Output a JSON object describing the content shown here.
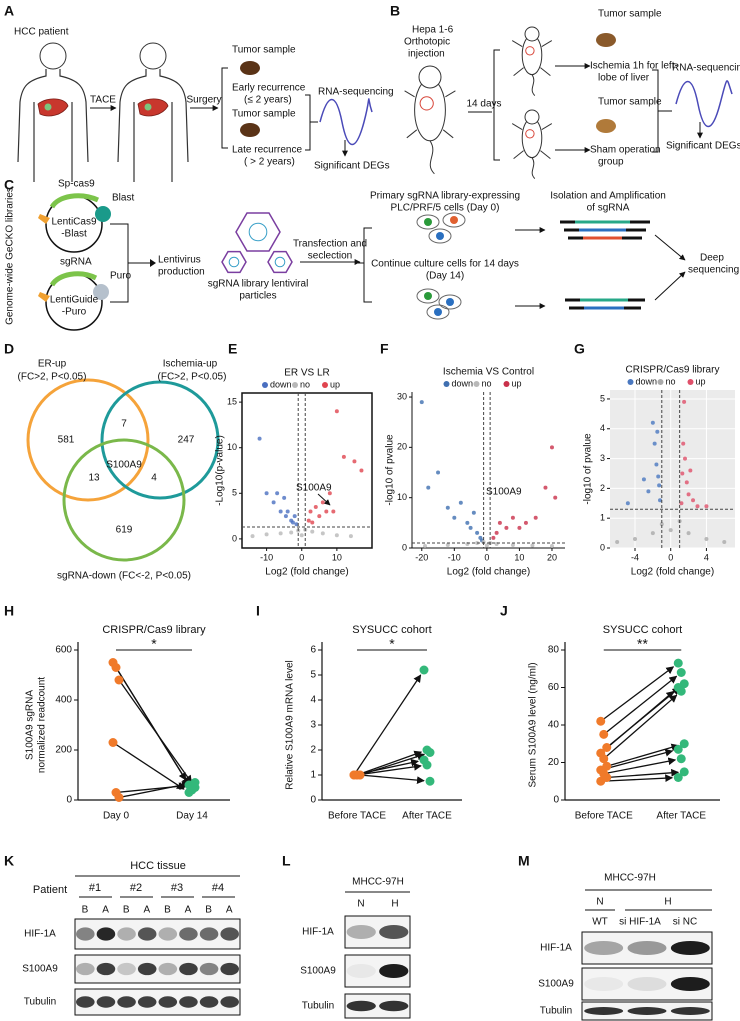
{
  "panels": {
    "A": {
      "letter": "A",
      "patient": "HCC patient",
      "tace": "TACE",
      "surgery": "Surgery",
      "tumor_early": "Tumor sample",
      "early": "Early recurrence",
      "early_range": "(≤ 2 years)",
      "tumor_late": "Tumor sample",
      "late": "Late recurrence",
      "late_range": "( > 2 years)",
      "rnaseq": "RNA-sequencing",
      "degs": "Significant DEGs"
    },
    "B": {
      "letter": "B",
      "cells": [
        "Hepa 1-6",
        "Orthotopic",
        "injection"
      ],
      "days": "14 days",
      "tumor_ischemia": "Tumor sample",
      "ischemia": [
        "Ischemia 1h for left-",
        "lobe of liver"
      ],
      "tumor_sham": "Tumor sample",
      "sham": [
        "Sham operation",
        "group"
      ],
      "rnaseq": "RNA-sequencing",
      "degs": "Significant DEGs"
    },
    "C": {
      "letter": "C",
      "side": "Genome-wide GeCKO libraries",
      "cas9": "Sp-cas9",
      "blast": "Blast",
      "plasmid1": [
        "LentiCas9",
        "-Blast"
      ],
      "sgrna": "sgRNA",
      "puro": "Puro",
      "plasmid2": [
        "LentiGuide",
        "-Puro"
      ],
      "lentivirus": [
        "Lentivirus",
        "production"
      ],
      "particles": [
        "sgRNA library lentiviral",
        "particles"
      ],
      "transfection": [
        "Transfection and",
        "seclection"
      ],
      "day0": [
        "Primary sgRNA library-expressing",
        "PLC/PRF/5 cells (Day 0)"
      ],
      "day14": [
        "Continue culture cells for 14 days",
        "(Day 14)"
      ],
      "isolation": [
        "Isolation and Amplification",
        "of sgRNA"
      ],
      "deep": [
        "Deep",
        "sequencing"
      ]
    },
    "D": {
      "letter": "D",
      "sets": [
        {
          "name": "ER-up",
          "criteria": "(FC>2, P<0.05)"
        },
        {
          "name": "Ischemia-up",
          "criteria": "(FC>2, P<0.05)"
        },
        {
          "name": "sgRNA-down (FC<-2, P<0.05)"
        }
      ],
      "regions": {
        "er_only": "581",
        "er_isch": "7",
        "isch_only": "247",
        "all": "S100A9",
        "er_sg": "13",
        "isch_sg": "4",
        "sg_only": "619"
      }
    },
    "E": {
      "letter": "E"
    },
    "F": {
      "letter": "F"
    },
    "G": {
      "letter": "G"
    },
    "H": {
      "letter": "H"
    },
    "I": {
      "letter": "I"
    },
    "J": {
      "letter": "J"
    },
    "K": {
      "letter": "K",
      "title": "HCC tissue",
      "patient": "Patient",
      "patients": [
        "#1",
        "#2",
        "#3",
        "#4"
      ],
      "lanes": [
        "B",
        "A",
        "B",
        "A",
        "B",
        "A",
        "B",
        "A"
      ],
      "rows": [
        "HIF-1A",
        "S100A9",
        "Tubulin"
      ]
    },
    "L": {
      "letter": "L",
      "cell": "MHCC-97H",
      "lanes": [
        "N",
        "H"
      ],
      "rows": [
        "HIF-1A",
        "S100A9",
        "Tubulin"
      ]
    },
    "M": {
      "letter": "M",
      "cell": "MHCC-97H",
      "groups": [
        "N",
        "H"
      ],
      "lanes": [
        "WT",
        "si HIF-1A",
        "si NC"
      ],
      "rows": [
        "HIF-1A",
        "S100A9",
        "Tubulin"
      ]
    }
  },
  "chart_data": [
    {
      "type": "scatter",
      "title": "ER VS LR",
      "xlabel": "Log2 (fold change)",
      "ylabel": "-Log10(p-value)",
      "xlim": [
        -17,
        20
      ],
      "ylim": [
        -1,
        16
      ],
      "xticks": [
        -10,
        0,
        10
      ],
      "yticks": [
        0,
        5,
        10,
        15
      ],
      "frame": true,
      "vlines": [
        -1,
        1
      ],
      "hline": 1.3,
      "annotation": "S100A9",
      "series": [
        {
          "name": "down",
          "color": "#4a6fc0",
          "x": [
            -12,
            -10,
            -8,
            -7,
            -6,
            -5,
            -4.5,
            -4,
            -3,
            -2.5,
            -2,
            -1.5
          ],
          "y": [
            11,
            5,
            4,
            5,
            3,
            4.5,
            2.5,
            3,
            2,
            1.8,
            2.5,
            1.6
          ]
        },
        {
          "name": "no",
          "color": "#b8b8b8",
          "x": [
            -14,
            -10,
            -6,
            -3,
            -1,
            0,
            1,
            3,
            6,
            10,
            14
          ],
          "y": [
            0.3,
            0.5,
            0.6,
            0.7,
            0.9,
            0.4,
            1,
            0.8,
            0.6,
            0.4,
            0.3
          ]
        },
        {
          "name": "up",
          "color": "#e0454f",
          "x": [
            2,
            2.5,
            3,
            4,
            5,
            6,
            7,
            8,
            9,
            10,
            12,
            15,
            17
          ],
          "y": [
            2,
            3,
            1.8,
            3.5,
            2.5,
            4,
            3,
            5,
            3,
            14,
            9,
            8.5,
            7.5
          ]
        }
      ]
    },
    {
      "type": "scatter",
      "title": "Ischemia VS Control",
      "xlabel": "Log2 (fold change)",
      "ylabel": "-log10 of pvalue",
      "xlim": [
        -23,
        24
      ],
      "ylim": [
        0,
        31
      ],
      "xticks": [
        -20,
        -10,
        0,
        10,
        20
      ],
      "yticks": [
        0,
        10,
        20,
        30
      ],
      "vlines": [
        -1,
        1
      ],
      "hline": 1,
      "annotation": "S100A9",
      "series": [
        {
          "name": "down",
          "color": "#3f6fb0",
          "x": [
            -20,
            -18,
            -15,
            -12,
            -10,
            -8,
            -6,
            -5,
            -4,
            -3,
            -2,
            -1.5
          ],
          "y": [
            29,
            12,
            15,
            8,
            6,
            9,
            5,
            4,
            7,
            3,
            2,
            1.5
          ]
        },
        {
          "name": "no",
          "color": "#b8b8b8",
          "x": [
            -19,
            -12,
            -6,
            -3,
            -1,
            0,
            1,
            3,
            8,
            14,
            20
          ],
          "y": [
            0.4,
            0.6,
            0.8,
            1,
            1.2,
            0.5,
            1,
            0.8,
            0.6,
            0.5,
            0.4
          ]
        },
        {
          "name": "up",
          "color": "#c9304a",
          "x": [
            2,
            3,
            4,
            6,
            8,
            10,
            12,
            15,
            18,
            20,
            21
          ],
          "y": [
            2,
            3,
            5,
            4,
            6,
            4,
            5,
            6,
            12,
            20,
            10
          ]
        }
      ]
    },
    {
      "type": "scatter",
      "title": "CRISPR/Cas9 library",
      "xlabel": "Log2 (fold change)",
      "ylabel": "-log10 of pvalue",
      "xlim": [
        -6.8,
        7.2
      ],
      "ylim": [
        0,
        5.3
      ],
      "xticks": [
        -4,
        0,
        4
      ],
      "yticks": [
        0,
        1,
        2,
        3,
        4,
        5
      ],
      "grid": true,
      "vlines": [
        -1,
        1
      ],
      "hline": 1.3,
      "series": [
        {
          "name": "down",
          "color": "#4a78c0",
          "x": [
            -4.8,
            -3,
            -2.5,
            -2,
            -1.8,
            -1.6,
            -1.5,
            -1.4,
            -1.3,
            -1.2
          ],
          "y": [
            1.5,
            2.3,
            1.9,
            4.2,
            3.5,
            2.8,
            3.9,
            2.4,
            2.1,
            1.6
          ]
        },
        {
          "name": "no",
          "color": "#aaaaaa",
          "x": [
            -6,
            -4,
            -2,
            -1,
            0,
            1,
            2,
            4,
            6
          ],
          "y": [
            0.2,
            0.3,
            0.5,
            0.8,
            0.6,
            0.9,
            0.5,
            0.3,
            0.2
          ]
        },
        {
          "name": "up",
          "color": "#e0506a",
          "x": [
            1.2,
            1.3,
            1.4,
            1.5,
            1.6,
            1.8,
            2,
            2.2,
            2.5,
            3,
            4
          ],
          "y": [
            1.5,
            2.5,
            3.5,
            4.9,
            3,
            2.2,
            1.8,
            2.6,
            1.6,
            1.4,
            1.4
          ]
        }
      ]
    },
    {
      "type": "paired",
      "title": "CRISPR/Cas9 library",
      "ylabel": [
        "S100A9 sgRNA",
        "normalized readcount"
      ],
      "categories": [
        "Day 0",
        "Day 14"
      ],
      "colors": [
        "#f07a2a",
        "#33b87a"
      ],
      "values": [
        [
          550,
          530,
          480,
          230,
          30,
          10
        ],
        [
          60,
          40,
          50,
          30,
          60,
          70
        ]
      ],
      "ylim": [
        0,
        600
      ],
      "yticks": [
        0,
        200,
        400,
        600
      ],
      "significance": "*"
    },
    {
      "type": "paired",
      "title": "SYSUCC cohort",
      "ylabel": [
        "Relative S100A9 mRNA level"
      ],
      "categories": [
        "Before TACE",
        "After TACE"
      ],
      "colors": [
        "#f07a2a",
        "#33b87a"
      ],
      "values": [
        [
          1,
          1,
          1,
          1,
          1,
          1
        ],
        [
          5.2,
          2,
          1.9,
          1.6,
          1.4,
          0.75
        ]
      ],
      "ylim": [
        0,
        6
      ],
      "yticks": [
        0,
        1,
        2,
        3,
        4,
        5,
        6
      ],
      "significance": "*"
    },
    {
      "type": "paired",
      "title": "SYSUCC cohort",
      "ylabel": [
        "Serum S100A9 level (ng/ml)"
      ],
      "categories": [
        "Before TACE",
        "After TACE"
      ],
      "colors": [
        "#f07a2a",
        "#33b87a"
      ],
      "values": [
        [
          42,
          35,
          28,
          25,
          22,
          18,
          16,
          14,
          12,
          10
        ],
        [
          73,
          68,
          62,
          60,
          58,
          30,
          27,
          22,
          15,
          12
        ]
      ],
      "ylim": [
        0,
        80
      ],
      "yticks": [
        0,
        20,
        40,
        60,
        80
      ],
      "significance": "**"
    }
  ]
}
